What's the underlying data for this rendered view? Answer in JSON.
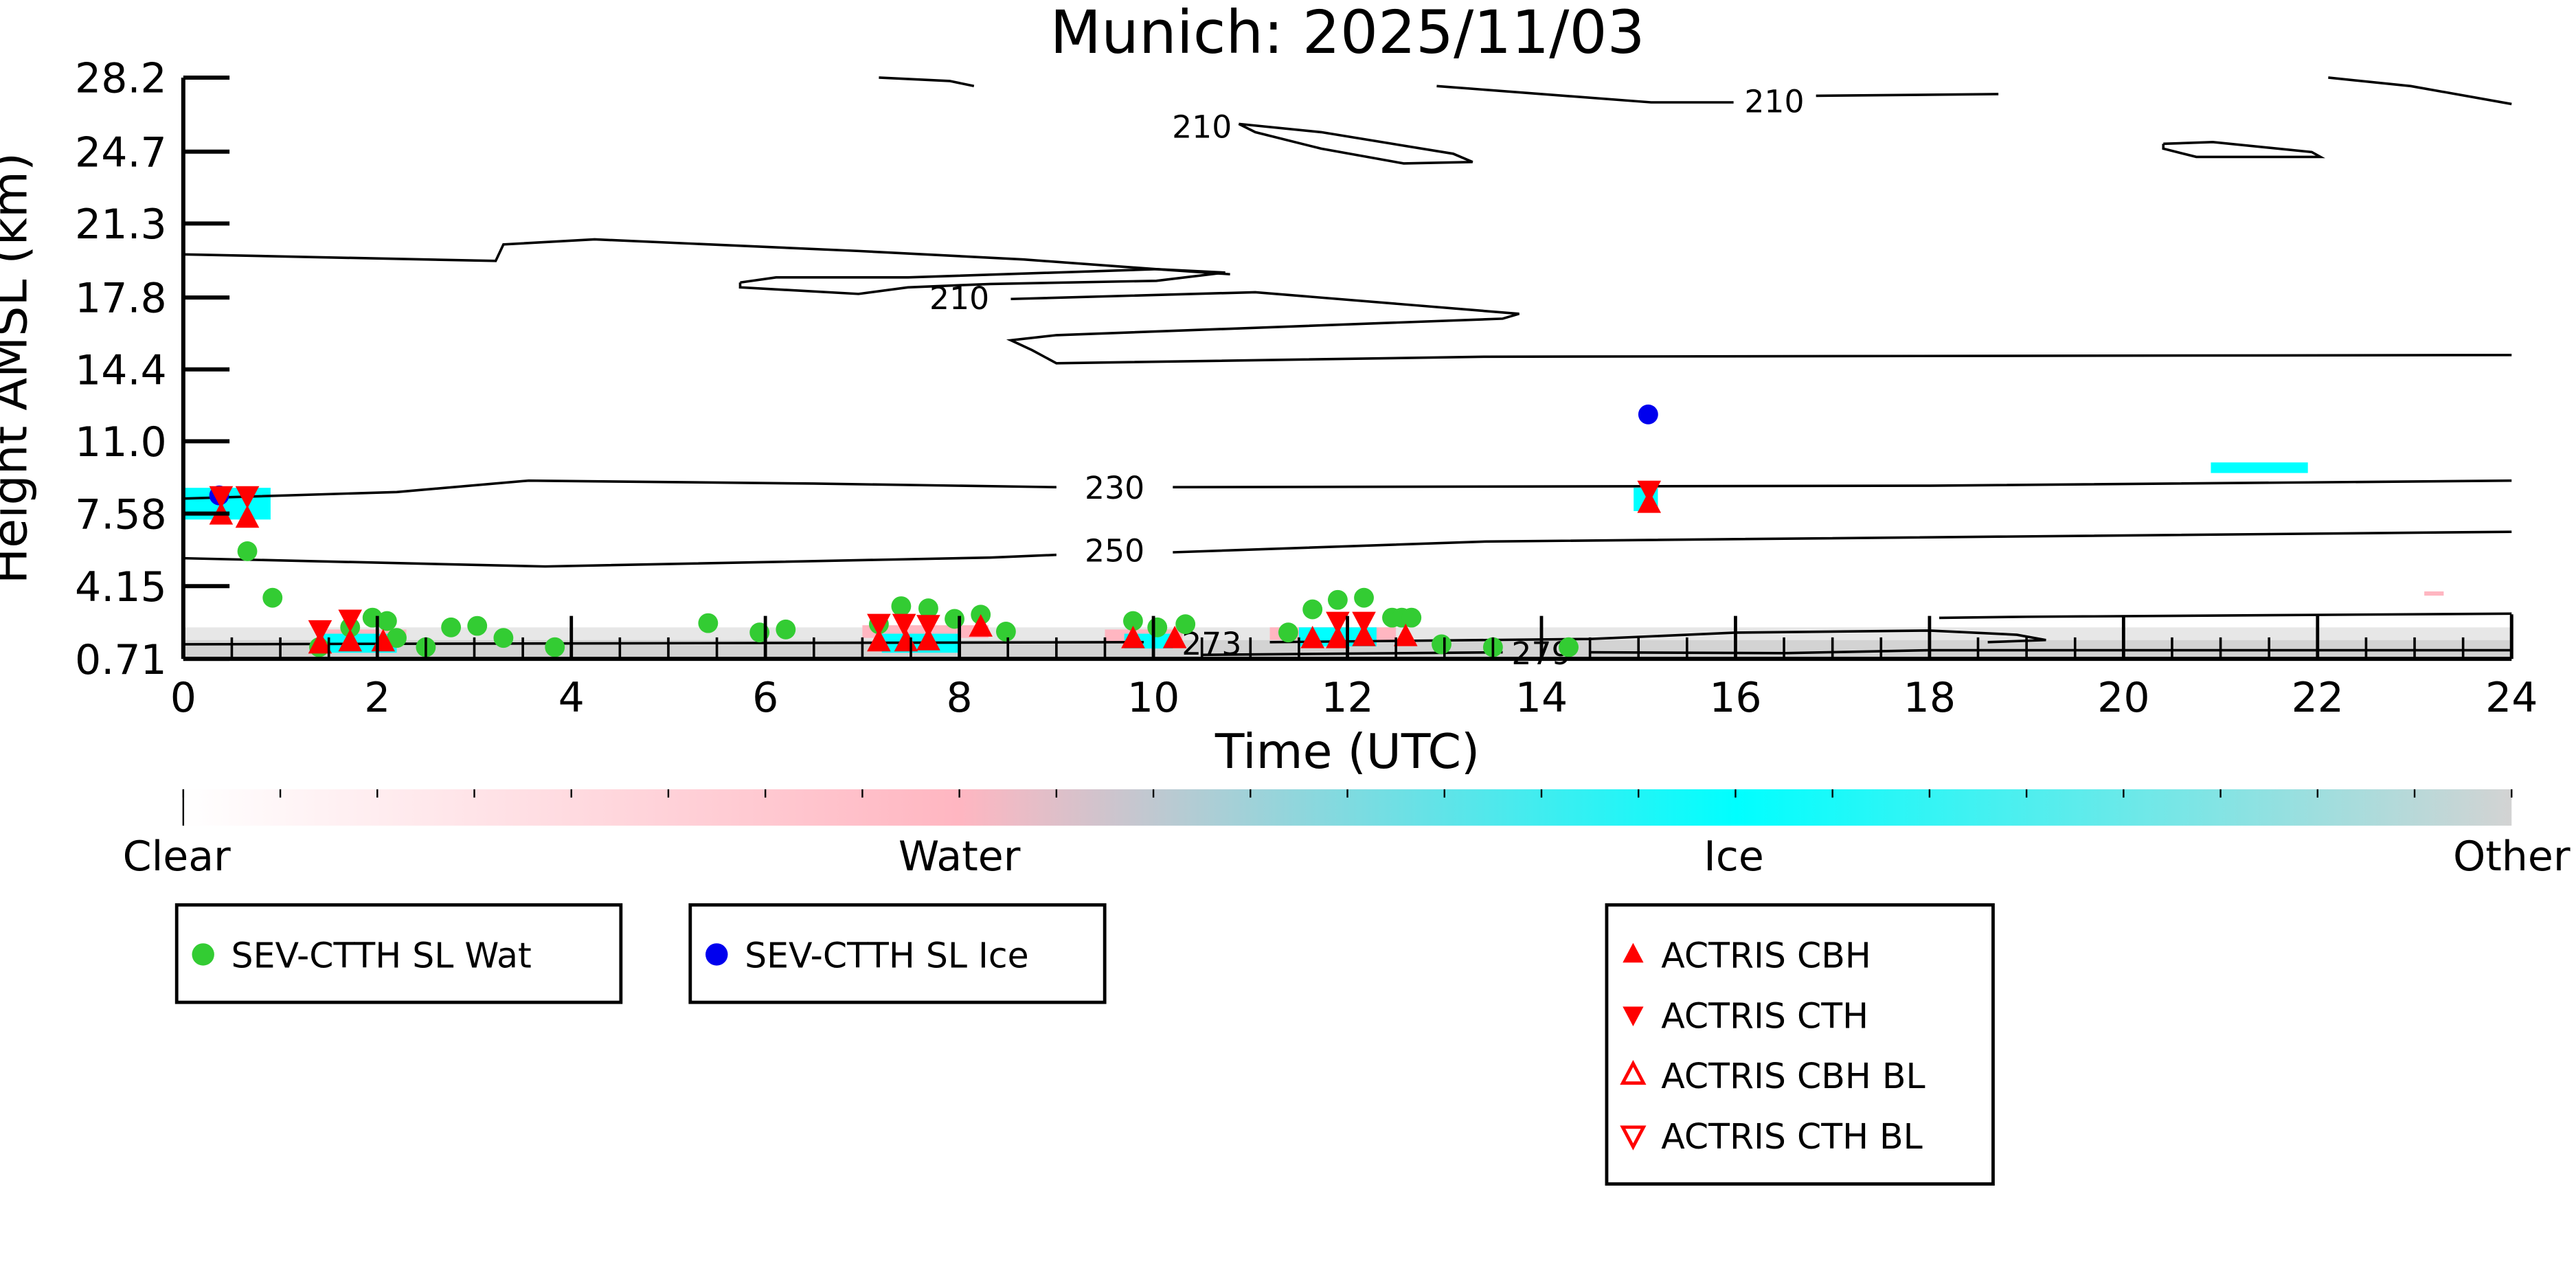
{
  "chart_data": {
    "type": "scatter",
    "title": "Munich: 2025/11/03",
    "xlabel": "Time (UTC)",
    "ylabel": "Height AMSL (km)",
    "xlim": [
      0,
      24
    ],
    "ylim": [
      0.71,
      28.2
    ],
    "xticks": [
      "0",
      "2",
      "4",
      "6",
      "8",
      "10",
      "12",
      "14",
      "16",
      "18",
      "20",
      "22",
      "24"
    ],
    "xtick_values": [
      0,
      2,
      4,
      6,
      8,
      10,
      12,
      14,
      16,
      18,
      20,
      22,
      24
    ],
    "yticks": [
      "0.71",
      "4.15",
      "7.58",
      "11.0",
      "14.4",
      "17.8",
      "21.3",
      "24.7",
      "28.2"
    ],
    "ytick_values": [
      0.71,
      4.15,
      7.58,
      11.0,
      14.4,
      17.8,
      21.3,
      24.7,
      28.2
    ],
    "series": [
      {
        "name": "SEV-CTTH SL Wat",
        "marker": "circle",
        "color": "#33cc33",
        "points": [
          [
            0.66,
            5.8
          ],
          [
            0.92,
            3.6
          ],
          [
            1.4,
            1.26
          ],
          [
            1.72,
            2.2
          ],
          [
            1.95,
            2.66
          ],
          [
            2.1,
            2.5
          ],
          [
            2.2,
            1.7
          ],
          [
            2.5,
            1.26
          ],
          [
            2.76,
            2.2
          ],
          [
            3.03,
            2.27
          ],
          [
            3.3,
            1.7
          ],
          [
            3.83,
            1.26
          ],
          [
            5.41,
            2.4
          ],
          [
            5.94,
            1.96
          ],
          [
            6.21,
            2.1
          ],
          [
            7.17,
            2.35
          ],
          [
            7.4,
            3.2
          ],
          [
            7.68,
            3.1
          ],
          [
            7.95,
            2.6
          ],
          [
            8.22,
            2.8
          ],
          [
            8.48,
            2.0
          ],
          [
            9.79,
            2.5
          ],
          [
            10.04,
            2.2
          ],
          [
            10.33,
            2.35
          ],
          [
            11.39,
            1.96
          ],
          [
            11.64,
            3.05
          ],
          [
            11.9,
            3.5
          ],
          [
            12.17,
            3.6
          ],
          [
            12.46,
            2.66
          ],
          [
            12.56,
            2.66
          ],
          [
            12.66,
            2.66
          ],
          [
            12.97,
            1.4
          ],
          [
            13.5,
            1.26
          ],
          [
            14.28,
            1.26
          ]
        ]
      },
      {
        "name": "SEV-CTTH SL Ice",
        "marker": "circle",
        "color": "#0000ee",
        "points": [
          [
            0.37,
            8.44
          ],
          [
            15.1,
            12.27
          ]
        ]
      },
      {
        "name": "ACTRIS CBH",
        "marker": "triangle-up",
        "color": "#ff0000",
        "points": [
          [
            0.39,
            7.5
          ],
          [
            0.66,
            7.35
          ],
          [
            1.41,
            1.4
          ],
          [
            1.72,
            1.5
          ],
          [
            2.06,
            1.5
          ],
          [
            7.17,
            1.5
          ],
          [
            7.45,
            1.5
          ],
          [
            7.68,
            1.55
          ],
          [
            8.22,
            2.2
          ],
          [
            9.79,
            1.65
          ],
          [
            10.22,
            1.65
          ],
          [
            11.64,
            1.65
          ],
          [
            11.9,
            1.65
          ],
          [
            12.17,
            1.75
          ],
          [
            12.6,
            1.75
          ],
          [
            15.11,
            8.05
          ]
        ]
      },
      {
        "name": "ACTRIS CTH",
        "marker": "triangle-down",
        "color": "#ff0000",
        "points": [
          [
            0.39,
            8.44
          ],
          [
            0.66,
            8.44
          ],
          [
            1.41,
            2.1
          ],
          [
            1.72,
            2.6
          ],
          [
            7.17,
            2.4
          ],
          [
            7.43,
            2.4
          ],
          [
            7.68,
            2.35
          ],
          [
            11.9,
            2.5
          ],
          [
            12.17,
            2.5
          ],
          [
            15.11,
            8.7
          ]
        ]
      },
      {
        "name": "ACTRIS CBH BL",
        "marker": "triangle-up-open",
        "color": "#ff0000",
        "points": []
      },
      {
        "name": "ACTRIS CTH BL",
        "marker": "triangle-down-open",
        "color": "#ff0000",
        "points": []
      }
    ],
    "contours": [
      {
        "level": "210",
        "label_at": [
          8.0,
          17.8
        ],
        "lines": [
          [
            [
              0,
              19.84
            ],
            [
              3.22,
              19.53
            ],
            [
              3.3,
              20.31
            ],
            [
              4.24,
              20.55
            ],
            [
              6.96,
              20.0
            ],
            [
              8.66,
              19.6
            ],
            [
              10.03,
              19.14
            ],
            [
              10.79,
              18.9
            ]
          ],
          [
            [
              5.74,
              18.51
            ],
            [
              6.11,
              18.75
            ],
            [
              7.47,
              18.75
            ],
            [
              10.03,
              19.14
            ],
            [
              10.74,
              18.98
            ],
            [
              10.03,
              18.59
            ],
            [
              8.32,
              18.44
            ],
            [
              7.47,
              18.28
            ],
            [
              6.96,
              17.97
            ],
            [
              5.74,
              18.28
            ],
            [
              5.74,
              18.51
            ]
          ],
          [
            [
              8.53,
              17.73
            ],
            [
              11.05,
              18.05
            ],
            [
              13.77,
              17.03
            ],
            [
              13.6,
              16.8
            ],
            [
              9.0,
              16.02
            ],
            [
              8.53,
              15.78
            ],
            [
              8.75,
              15.31
            ],
            [
              9.0,
              14.69
            ],
            [
              13.43,
              15.0
            ],
            [
              24,
              15.08
            ]
          ]
        ]
      },
      {
        "level": "210",
        "label_at": [
          10.5,
          25.9
        ],
        "lines": [
          [
            [
              7.17,
              28.2
            ],
            [
              7.9,
              28.04
            ],
            [
              8.15,
              27.8
            ]
          ],
          [
            [
              10.88,
              26.01
            ],
            [
              11.73,
              25.62
            ],
            [
              13.09,
              24.6
            ],
            [
              13.29,
              24.21
            ],
            [
              12.58,
              24.14
            ],
            [
              11.73,
              24.84
            ],
            [
              11.05,
              25.62
            ],
            [
              10.88,
              26.01
            ]
          ]
        ]
      },
      {
        "level": "210",
        "label_at": [
          16.4,
          27.1
        ],
        "lines": [
          [
            [
              12.92,
              27.8
            ],
            [
              15.13,
              27.03
            ],
            [
              15.98,
              27.03
            ]
          ],
          [
            [
              16.83,
              27.34
            ],
            [
              18.71,
              27.42
            ]
          ],
          [
            [
              22.11,
              28.2
            ],
            [
              22.96,
              27.8
            ],
            [
              24,
              26.95
            ]
          ],
          [
            [
              20.41,
              25.07
            ],
            [
              20.92,
              25.15
            ],
            [
              21.94,
              24.68
            ],
            [
              22.03,
              24.45
            ],
            [
              20.75,
              24.45
            ],
            [
              20.41,
              24.84
            ],
            [
              20.41,
              25.07
            ]
          ]
        ]
      },
      {
        "level": "230",
        "label_at": [
          9.6,
          8.83
        ],
        "lines": [
          [
            [
              0,
              8.29
            ],
            [
              2.2,
              8.6
            ],
            [
              3.56,
              9.14
            ],
            [
              6.5,
              9.0
            ],
            [
              9.0,
              8.83
            ]
          ],
          [
            [
              10.2,
              8.83
            ],
            [
              18,
              8.9
            ],
            [
              24,
              9.14
            ]
          ]
        ]
      },
      {
        "level": "250",
        "label_at": [
          9.6,
          5.86
        ],
        "lines": [
          [
            [
              0,
              5.47
            ],
            [
              3.73,
              5.08
            ],
            [
              8.32,
              5.5
            ],
            [
              9.0,
              5.63
            ]
          ],
          [
            [
              10.2,
              5.75
            ],
            [
              13.43,
              6.26
            ],
            [
              24,
              6.72
            ]
          ]
        ]
      },
      {
        "level": "273",
        "label_at": [
          10.6,
          1.45
        ],
        "lines": [
          [
            [
              0,
              1.4
            ],
            [
              9.9,
              1.5
            ]
          ],
          [
            [
              11.2,
              1.5
            ],
            [
              14.5,
              1.65
            ],
            [
              16,
              1.95
            ],
            [
              18,
              2.05
            ],
            [
              18.9,
              1.85
            ],
            [
              19.2,
              1.6
            ],
            [
              18.6,
              1.5
            ]
          ],
          [
            [
              18.1,
              2.65
            ],
            [
              19.0,
              2.7
            ],
            [
              24,
              2.85
            ]
          ]
        ]
      },
      {
        "level": "279",
        "label_at": [
          14.0,
          1.0
        ],
        "lines": [
          [
            [
              10.5,
              0.9
            ],
            [
              13.6,
              1.02
            ]
          ],
          [
            [
              14.5,
              1.02
            ],
            [
              16.5,
              0.98
            ],
            [
              18.0,
              1.12
            ],
            [
              22,
              1.12
            ],
            [
              24,
              1.12
            ]
          ]
        ]
      }
    ],
    "phase_patches": [
      {
        "phase": "Other",
        "t": [
          0,
          24
        ],
        "h": [
          0.71,
          1.6
        ]
      },
      {
        "phase": "Other",
        "t": [
          0,
          24
        ],
        "h": [
          1.6,
          2.2
        ]
      },
      {
        "phase": "Water",
        "t": [
          1.4,
          2.3
        ],
        "h": [
          1.6,
          2.1
        ]
      },
      {
        "phase": "Water",
        "t": [
          7.0,
          8.3
        ],
        "h": [
          1.7,
          2.3
        ]
      },
      {
        "phase": "Water",
        "t": [
          9.5,
          10.3
        ],
        "h": [
          1.5,
          2.1
        ]
      },
      {
        "phase": "Water",
        "t": [
          11.2,
          12.5
        ],
        "h": [
          1.6,
          2.2
        ]
      },
      {
        "phase": "Water",
        "t": [
          23.1,
          23.3
        ],
        "h": [
          3.7,
          3.9
        ]
      },
      {
        "phase": "Ice",
        "t": [
          0,
          0.9
        ],
        "h": [
          7.3,
          8.8
        ]
      },
      {
        "phase": "Ice",
        "t": [
          1.4,
          2.2
        ],
        "h": [
          1.0,
          1.9
        ]
      },
      {
        "phase": "Ice",
        "t": [
          7.2,
          8.0
        ],
        "h": [
          1.0,
          1.9
        ]
      },
      {
        "phase": "Ice",
        "t": [
          9.7,
          10.2
        ],
        "h": [
          1.2,
          1.9
        ]
      },
      {
        "phase": "Ice",
        "t": [
          11.5,
          12.3
        ],
        "h": [
          1.3,
          2.2
        ]
      },
      {
        "phase": "Ice",
        "t": [
          14.95,
          15.2
        ],
        "h": [
          7.7,
          8.8
        ]
      },
      {
        "phase": "Ice",
        "t": [
          20.9,
          21.9
        ],
        "h": [
          9.5,
          10.0
        ]
      }
    ],
    "colorbar": {
      "labels": [
        "Clear",
        "Water",
        "Ice",
        "Other"
      ],
      "colors": {
        "Clear": "#ffffff",
        "Water": "#ffb6c1",
        "Ice": "#00ffff",
        "Other": "#d3d3d3"
      }
    },
    "legends": [
      {
        "entries": [
          0
        ]
      },
      {
        "entries": [
          1
        ]
      },
      {
        "entries": [
          2,
          3,
          4,
          5
        ]
      }
    ]
  }
}
